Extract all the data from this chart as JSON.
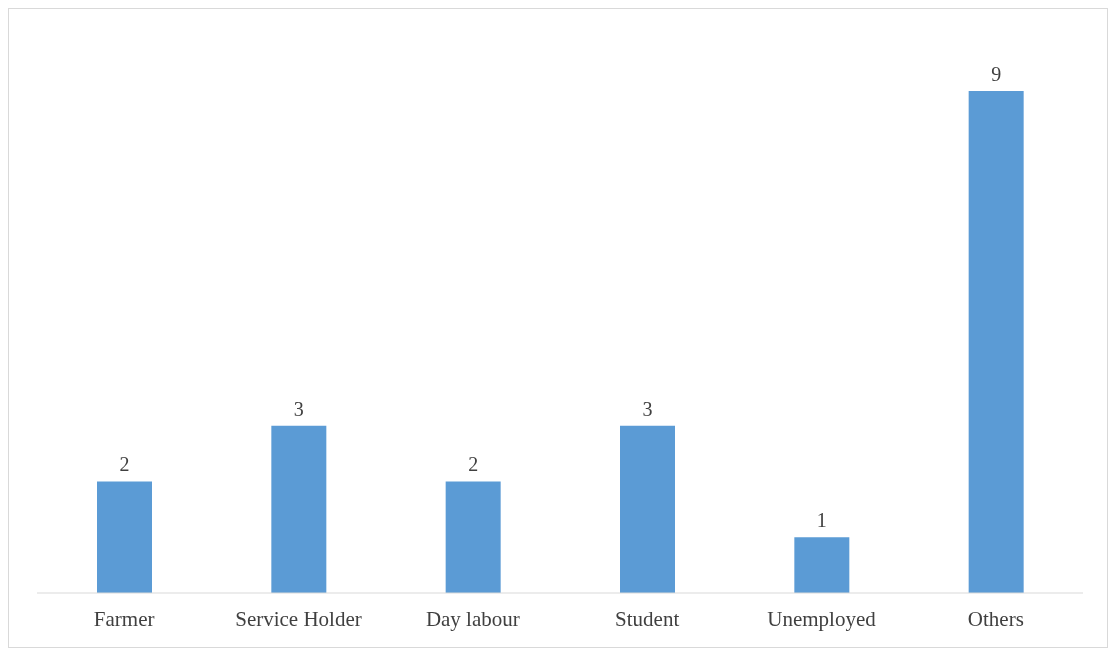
{
  "chart_data": {
    "type": "bar",
    "categories": [
      "Farmer",
      "Service Holder",
      "Day labour",
      "Student",
      "Unemployed",
      "Others"
    ],
    "values": [
      2,
      3,
      2,
      3,
      1,
      9
    ],
    "color": "#5b9bd5",
    "data_labels": true,
    "grid": false,
    "legend": false
  }
}
